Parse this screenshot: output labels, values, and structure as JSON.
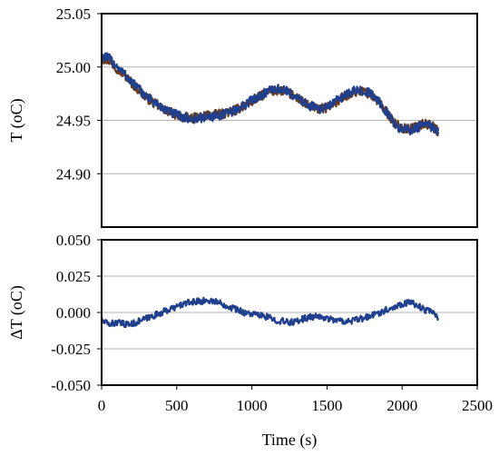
{
  "chart_data": [
    {
      "type": "line",
      "title": "",
      "xlabel": "",
      "ylabel": "T (oC)",
      "xlim": [
        0,
        2500
      ],
      "ylim": [
        24.85,
        25.05
      ],
      "grid": true,
      "y_ticks": [
        "25.05",
        "25.00",
        "24.95",
        "24.90"
      ],
      "y_tick_values": [
        25.05,
        25.0,
        24.95,
        24.9
      ],
      "series": [
        {
          "color": "#6b3a1a",
          "x": [
            0,
            50,
            100,
            150,
            200,
            250,
            300,
            350,
            400,
            450,
            500,
            550,
            600,
            650,
            700,
            750,
            800,
            850,
            900,
            950,
            1000,
            1050,
            1100,
            1150,
            1200,
            1250,
            1300,
            1350,
            1400,
            1450,
            1500,
            1550,
            1600,
            1650,
            1700,
            1750,
            1800,
            1850,
            1900,
            1950,
            2000,
            2050,
            2100,
            2150,
            2200,
            2240
          ],
          "values": [
            25.008,
            25.006,
            24.999,
            24.993,
            24.985,
            24.978,
            24.971,
            24.966,
            24.961,
            24.958,
            24.955,
            24.953,
            24.952,
            24.953,
            24.955,
            24.955,
            24.956,
            24.958,
            24.96,
            24.964,
            24.968,
            24.972,
            24.976,
            24.978,
            24.978,
            24.975,
            24.971,
            24.966,
            24.962,
            24.96,
            24.962,
            24.966,
            24.971,
            24.975,
            24.977,
            24.977,
            24.973,
            24.966,
            24.957,
            24.947,
            24.943,
            24.942,
            24.944,
            24.947,
            24.945,
            24.939
          ]
        },
        {
          "color": "#1f3f8f",
          "x": [
            0,
            50,
            100,
            150,
            200,
            250,
            300,
            350,
            400,
            450,
            500,
            550,
            600,
            650,
            700,
            750,
            800,
            850,
            900,
            950,
            1000,
            1050,
            1100,
            1150,
            1200,
            1250,
            1300,
            1350,
            1400,
            1450,
            1500,
            1550,
            1600,
            1650,
            1700,
            1750,
            1800,
            1850,
            1900,
            1950,
            2000,
            2050,
            2100,
            2150,
            2200,
            2240
          ],
          "values": [
            25.01,
            25.008,
            25.001,
            24.994,
            24.986,
            24.979,
            24.972,
            24.967,
            24.962,
            24.958,
            24.955,
            24.953,
            24.951,
            24.952,
            24.953,
            24.954,
            24.955,
            24.957,
            24.96,
            24.964,
            24.969,
            24.973,
            24.977,
            24.979,
            24.979,
            24.976,
            24.971,
            24.967,
            24.963,
            24.961,
            24.963,
            24.967,
            24.972,
            24.976,
            24.978,
            24.978,
            24.974,
            24.967,
            24.957,
            24.946,
            24.942,
            24.941,
            24.943,
            24.946,
            24.944,
            24.94
          ]
        }
      ]
    },
    {
      "type": "line",
      "title": "",
      "xlabel": "Time (s)",
      "ylabel": "ΔT (oC)",
      "xlim": [
        0,
        2500
      ],
      "ylim": [
        -0.05,
        0.05
      ],
      "grid": true,
      "x_ticks": [
        "0",
        "500",
        "1000",
        "1500",
        "2000",
        "2500"
      ],
      "x_tick_values": [
        0,
        500,
        1000,
        1500,
        2000,
        2500
      ],
      "y_ticks": [
        "0.050",
        "0.025",
        "0.000",
        "-0.025",
        "-0.050"
      ],
      "y_tick_values": [
        0.05,
        0.025,
        0.0,
        -0.025,
        -0.05
      ],
      "series": [
        {
          "color": "#1f3f8f",
          "x": [
            0,
            50,
            100,
            150,
            200,
            250,
            300,
            350,
            400,
            450,
            500,
            550,
            600,
            650,
            700,
            750,
            800,
            850,
            900,
            950,
            1000,
            1050,
            1100,
            1150,
            1200,
            1250,
            1300,
            1350,
            1400,
            1450,
            1500,
            1550,
            1600,
            1650,
            1700,
            1750,
            1800,
            1850,
            1900,
            1950,
            2000,
            2050,
            2100,
            2150,
            2200,
            2240
          ],
          "values": [
            -0.006,
            -0.008,
            -0.007,
            -0.008,
            -0.008,
            -0.006,
            -0.004,
            -0.002,
            0.0,
            0.002,
            0.004,
            0.006,
            0.007,
            0.008,
            0.008,
            0.008,
            0.006,
            0.004,
            0.002,
            0.0,
            -0.001,
            -0.002,
            -0.003,
            -0.005,
            -0.006,
            -0.007,
            -0.006,
            -0.004,
            -0.003,
            -0.003,
            -0.004,
            -0.005,
            -0.006,
            -0.006,
            -0.005,
            -0.004,
            -0.002,
            0.0,
            0.002,
            0.004,
            0.006,
            0.007,
            0.005,
            0.002,
            0.0,
            -0.004
          ]
        }
      ]
    }
  ]
}
